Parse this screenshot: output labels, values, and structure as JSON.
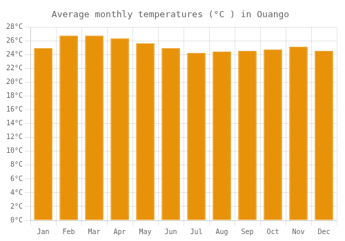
{
  "chart_data": {
    "type": "bar",
    "title": "Average monthly temperatures (°C ) in Ouango",
    "categories": [
      "Jan",
      "Feb",
      "Mar",
      "Apr",
      "May",
      "Jun",
      "Jul",
      "Aug",
      "Sep",
      "Oct",
      "Nov",
      "Dec"
    ],
    "values": [
      25.0,
      26.8,
      26.8,
      26.4,
      25.7,
      25.0,
      24.3,
      24.5,
      24.6,
      24.8,
      25.2,
      24.6
    ],
    "color": "#E8920A",
    "ylim": [
      0,
      28
    ],
    "yticks": [
      {
        "value": 0,
        "label": "0°C"
      },
      {
        "value": 2,
        "label": "2°C"
      },
      {
        "value": 4,
        "label": "4°C"
      },
      {
        "value": 6,
        "label": "6°C"
      },
      {
        "value": 8,
        "label": "8°C"
      },
      {
        "value": 10,
        "label": "10°C"
      },
      {
        "value": 12,
        "label": "12°C"
      },
      {
        "value": 14,
        "label": "14°C"
      },
      {
        "value": 16,
        "label": "16°C"
      },
      {
        "value": 18,
        "label": "18°C"
      },
      {
        "value": 20,
        "label": "20°C"
      },
      {
        "value": 22,
        "label": "22°C"
      },
      {
        "value": 24,
        "label": "24°C"
      },
      {
        "value": 26,
        "label": "26°C"
      },
      {
        "value": 28,
        "label": "28°C"
      }
    ],
    "grid": true
  }
}
